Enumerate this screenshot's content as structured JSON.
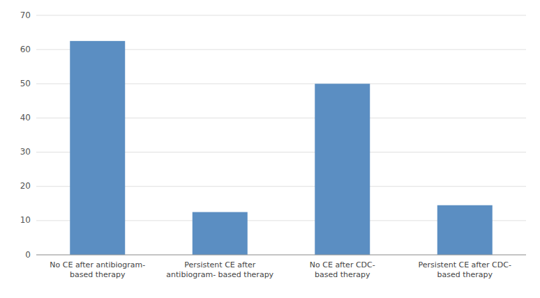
{
  "chart_data": {
    "type": "bar",
    "categories": [
      "No CE after antibiogram-\nbased therapy",
      "Persistent CE after\nantibiogram- based therapy",
      "No CE after CDC-\nbased therapy",
      "Persistent CE after CDC-\nbased therapy"
    ],
    "values": [
      62.5,
      12.5,
      50.0,
      14.5
    ],
    "color": "#5b8ec2",
    "ylim": [
      0,
      70
    ],
    "yticks": [
      0,
      10,
      20,
      30,
      40,
      50,
      60,
      70
    ],
    "grid": true
  }
}
